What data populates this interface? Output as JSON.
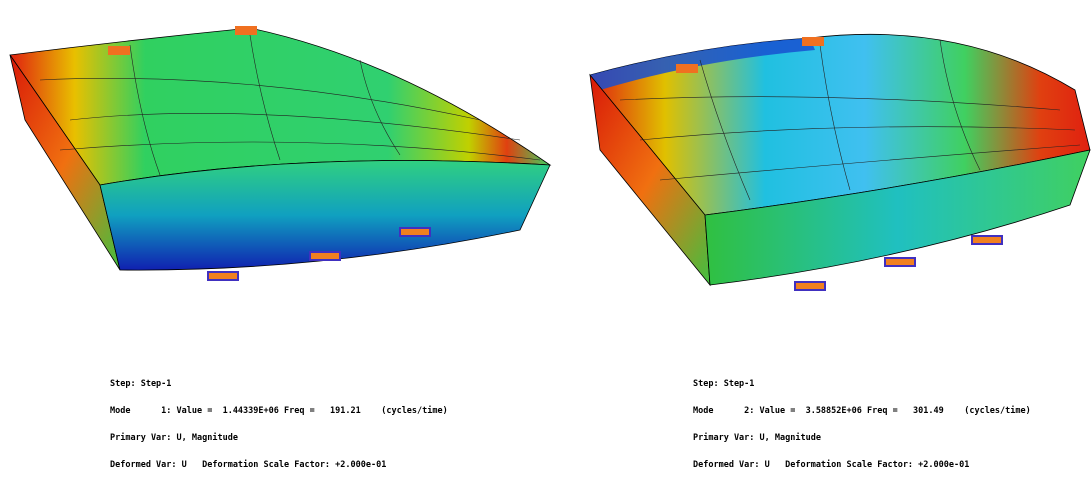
{
  "panels": [
    {
      "lines": [
        "Step: Step-1",
        "Mode      1: Value =  1.44339E+06 Freq =   191.21    (cycles/time)",
        "Primary Var: U, Magnitude",
        "Deformed Var: U   Deformation Scale Factor: +2.000e-01"
      ]
    },
    {
      "lines": [
        "Step: Step-1",
        "Mode      2: Value =  3.58852E+06 Freq =   301.49    (cycles/time)",
        "Primary Var: U, Magnitude",
        "Deformed Var: U   Deformation Scale Factor: +2.000e-01"
      ]
    }
  ]
}
